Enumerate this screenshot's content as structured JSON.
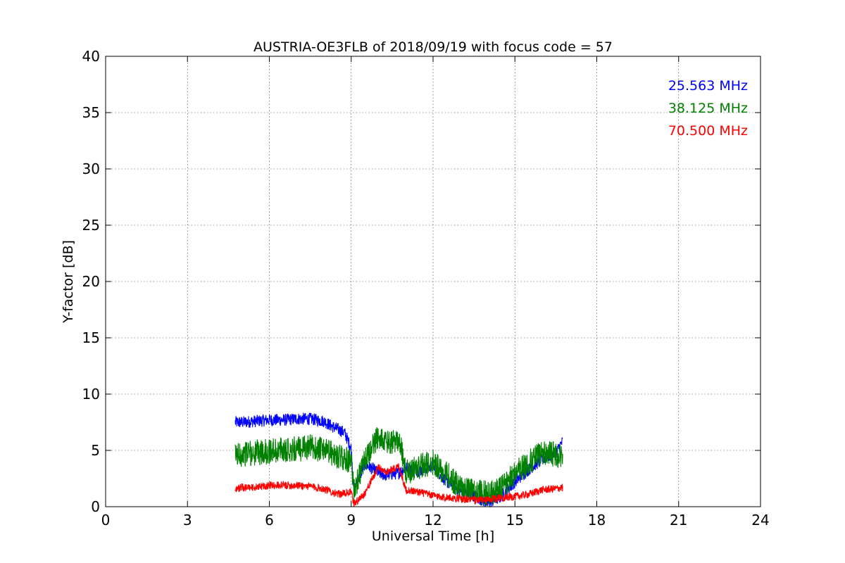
{
  "chart_data": {
    "type": "line",
    "title": "AUSTRIA-OE3FLB of 2018/09/19 with focus code = 57",
    "xlabel": "Universal Time [h]",
    "ylabel": "Y-factor [dB]",
    "xlim": [
      0,
      24
    ],
    "ylim": [
      0,
      40
    ],
    "xticks": [
      "0",
      "3",
      "6",
      "9",
      "12",
      "15",
      "18",
      "21",
      "24"
    ],
    "yticks": [
      "0",
      "5",
      "10",
      "15",
      "20",
      "25",
      "30",
      "35",
      "40"
    ],
    "grid": true,
    "legend_position": "top-right",
    "series": [
      {
        "name": "25.563 MHz",
        "color": "#0000ff",
        "x": [
          4.75,
          5.0,
          5.5,
          6.0,
          6.5,
          7.0,
          7.5,
          8.0,
          8.25,
          8.5,
          8.75,
          9.0,
          9.1,
          9.5,
          10.0,
          10.25,
          10.5,
          10.75,
          11.0,
          11.5,
          12.0,
          12.5,
          13.0,
          13.5,
          14.0,
          14.5,
          15.0,
          15.5,
          16.0,
          16.5,
          16.75
        ],
        "y": [
          7.5,
          7.5,
          7.6,
          7.7,
          7.7,
          7.8,
          7.8,
          7.6,
          7.2,
          6.9,
          6.6,
          5.2,
          1.5,
          3.8,
          3.0,
          2.8,
          2.9,
          3.0,
          3.5,
          3.2,
          3.6,
          2.2,
          1.4,
          1.0,
          0.3,
          0.9,
          2.2,
          3.3,
          4.2,
          4.8,
          5.8
        ],
        "spread": 0.55
      },
      {
        "name": "38.125 MHz",
        "color": "#008000",
        "x": [
          4.75,
          5.0,
          5.5,
          6.0,
          6.5,
          7.0,
          7.5,
          8.0,
          8.5,
          9.0,
          9.1,
          9.5,
          10.0,
          10.25,
          10.5,
          10.75,
          11.0,
          11.5,
          12.0,
          12.5,
          13.0,
          13.5,
          14.0,
          14.5,
          15.0,
          15.5,
          16.0,
          16.5,
          16.75
        ],
        "y": [
          4.5,
          4.7,
          4.8,
          4.9,
          5.1,
          5.1,
          5.3,
          5.0,
          4.5,
          4.0,
          1.5,
          4.0,
          6.3,
          5.7,
          5.6,
          6.2,
          3.0,
          3.6,
          3.9,
          2.9,
          1.7,
          1.3,
          1.2,
          1.6,
          3.0,
          3.9,
          4.8,
          4.7,
          4.3
        ],
        "spread": 1.15
      },
      {
        "name": "70.500 MHz",
        "color": "#ff0000",
        "x": [
          4.75,
          5.0,
          5.5,
          6.0,
          6.5,
          7.0,
          7.5,
          8.0,
          8.5,
          9.0,
          9.1,
          9.5,
          10.0,
          10.25,
          10.5,
          10.75,
          11.0,
          11.5,
          12.0,
          12.5,
          13.0,
          13.5,
          14.0,
          14.5,
          15.0,
          15.5,
          16.0,
          16.5,
          16.75
        ],
        "y": [
          1.6,
          1.7,
          1.7,
          1.9,
          1.9,
          1.9,
          1.8,
          1.6,
          1.1,
          1.3,
          0.2,
          1.2,
          3.5,
          3.1,
          3.3,
          3.6,
          1.5,
          1.3,
          1.0,
          0.8,
          0.7,
          0.6,
          0.6,
          0.8,
          0.9,
          1.1,
          1.5,
          1.6,
          1.7
        ],
        "spread": 0.35
      }
    ]
  }
}
